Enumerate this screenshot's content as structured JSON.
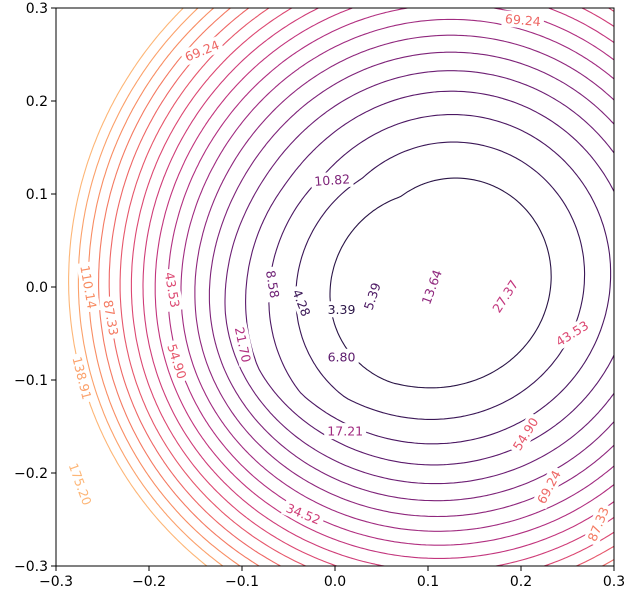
{
  "chart_data": {
    "type": "contour",
    "title": "",
    "xlabel": "",
    "ylabel": "",
    "xlim": [
      -0.3,
      0.3
    ],
    "ylim": [
      -0.3,
      0.3
    ],
    "x_ticks": [
      "−0.3",
      "−0.2",
      "−0.1",
      "0.0",
      "0.1",
      "0.2",
      "0.3"
    ],
    "y_ticks": [
      "−0.3",
      "−0.2",
      "−0.1",
      "0.0",
      "0.1",
      "0.2",
      "0.3"
    ],
    "grid": false,
    "colormap": "magma-like (dark purple at center to light orange outward)",
    "levels": [
      3.39,
      4.28,
      5.39,
      6.8,
      8.58,
      10.82,
      13.64,
      17.21,
      21.7,
      27.37,
      34.52,
      43.53,
      54.9,
      69.24,
      87.33,
      110.14,
      138.91,
      175.2
    ],
    "level_colors": [
      "#2a1446",
      "#3a1656",
      "#4b1762",
      "#5c1a6c",
      "#6d1f74",
      "#7e2379",
      "#8f277d",
      "#a02b80",
      "#b12f80",
      "#c2357d",
      "#cf3d78",
      "#dc4872",
      "#e6576b",
      "#ee6765",
      "#f47a62",
      "#f88d63",
      "#fba16b",
      "#fdb677"
    ],
    "labels": [
      {
        "text": "3.39",
        "x": 0.007,
        "y": -0.024,
        "rot": 0
      },
      {
        "text": "4.28",
        "x": -0.036,
        "y": -0.017,
        "rot": 68
      },
      {
        "text": "5.39",
        "x": 0.04,
        "y": -0.01,
        "rot": -72
      },
      {
        "text": "6.80",
        "x": 0.007,
        "y": -0.075,
        "rot": 0
      },
      {
        "text": "8.58",
        "x": -0.067,
        "y": 0.003,
        "rot": 80
      },
      {
        "text": "10.82",
        "x": -0.003,
        "y": 0.115,
        "rot": -4
      },
      {
        "text": "13.64",
        "x": 0.104,
        "y": 0.0,
        "rot": -70
      },
      {
        "text": "17.21",
        "x": 0.011,
        "y": -0.155,
        "rot": 0
      },
      {
        "text": "21.70",
        "x": -0.099,
        "y": -0.062,
        "rot": 78
      },
      {
        "text": "27.37",
        "x": 0.183,
        "y": -0.01,
        "rot": -57
      },
      {
        "text": "34.52",
        "x": -0.034,
        "y": -0.244,
        "rot": 22
      },
      {
        "text": "43.53",
        "x": -0.175,
        "y": -0.003,
        "rot": 80
      },
      {
        "text": "43.53",
        "x": 0.255,
        "y": -0.05,
        "rot": -32
      },
      {
        "text": "54.90",
        "x": -0.17,
        "y": -0.08,
        "rot": 72
      },
      {
        "text": "54.90",
        "x": 0.205,
        "y": -0.158,
        "rot": -58
      },
      {
        "text": "69.24",
        "x": -0.143,
        "y": 0.254,
        "rot": -22
      },
      {
        "text": "69.24",
        "x": 0.202,
        "y": 0.287,
        "rot": 5
      },
      {
        "text": "69.24",
        "x": 0.23,
        "y": -0.215,
        "rot": -62
      },
      {
        "text": "87.33",
        "x": -0.241,
        "y": -0.033,
        "rot": 80
      },
      {
        "text": "87.33",
        "x": 0.283,
        "y": -0.255,
        "rot": -68
      },
      {
        "text": "110.14",
        "x": -0.265,
        "y": 0.0,
        "rot": 80
      },
      {
        "text": "138.91",
        "x": -0.272,
        "y": -0.098,
        "rot": 76
      },
      {
        "text": "175.20",
        "x": -0.274,
        "y": -0.212,
        "rot": 70
      }
    ]
  }
}
